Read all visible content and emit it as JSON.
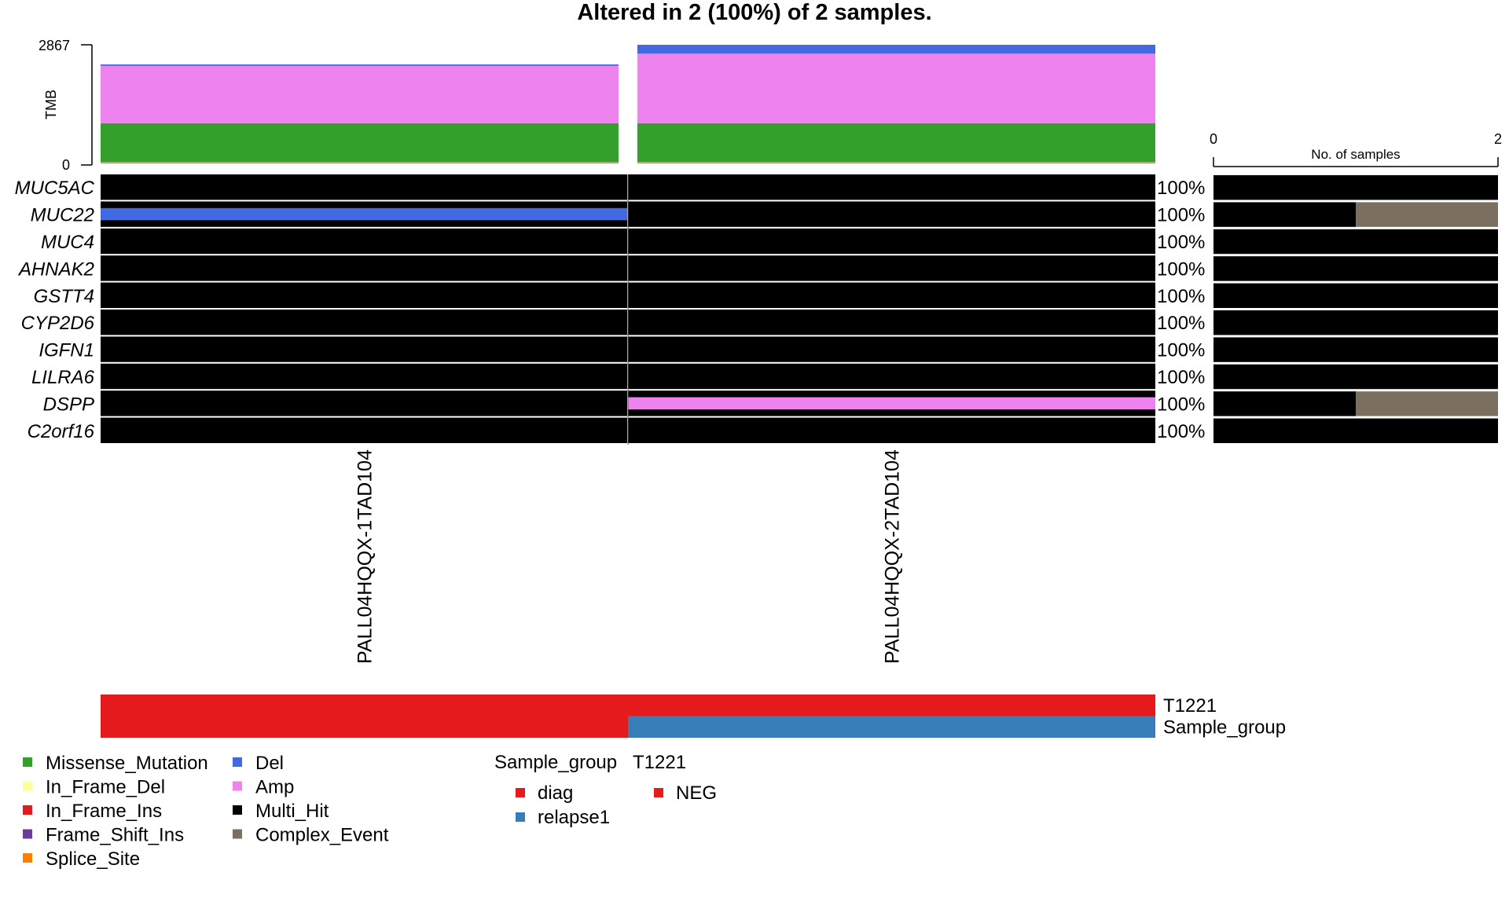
{
  "chart_data": {
    "type": "oncoplot",
    "title": "Altered in 2 (100%) of 2 samples.",
    "tmb_axis": {
      "label": "TMB",
      "ylim": [
        0,
        2867
      ],
      "ticks": [
        "0",
        "2867"
      ]
    },
    "samples": [
      "PALL04HQQX-1TAD104",
      "PALL04HQQX-2TAD104"
    ],
    "tmb": [
      {
        "sample": "PALL04HQQX-1TAD104",
        "segments": [
          {
            "class": "Splice_Site",
            "value": 8
          },
          {
            "class": "Frame_Shift_Ins",
            "value": 8
          },
          {
            "class": "In_Frame_Ins",
            "value": 8
          },
          {
            "class": "In_Frame_Del",
            "value": 8
          },
          {
            "class": "Missense_Mutation",
            "value": 940
          },
          {
            "class": "Amp",
            "value": 1385
          },
          {
            "class": "Del",
            "value": 35
          }
        ]
      },
      {
        "sample": "PALL04HQQX-2TAD104",
        "segments": [
          {
            "class": "Splice_Site",
            "value": 8
          },
          {
            "class": "Frame_Shift_Ins",
            "value": 8
          },
          {
            "class": "In_Frame_Ins",
            "value": 8
          },
          {
            "class": "In_Frame_Del",
            "value": 8
          },
          {
            "class": "Missense_Mutation",
            "value": 940
          },
          {
            "class": "Amp",
            "value": 1680
          },
          {
            "class": "Del",
            "value": 215
          }
        ]
      }
    ],
    "genes": [
      "MUC5AC",
      "MUC22",
      "MUC4",
      "AHNAK2",
      "GSTT4",
      "CYP2D6",
      "IGFN1",
      "LILRA6",
      "DSPP",
      "C2orf16"
    ],
    "percentages": [
      "100%",
      "100%",
      "100%",
      "100%",
      "100%",
      "100%",
      "100%",
      "100%",
      "100%",
      "100%"
    ],
    "cells": [
      [
        "Multi_Hit",
        "Multi_Hit"
      ],
      [
        "Del",
        "Multi_Hit"
      ],
      [
        "Multi_Hit",
        "Multi_Hit"
      ],
      [
        "Multi_Hit",
        "Multi_Hit"
      ],
      [
        "Multi_Hit",
        "Multi_Hit"
      ],
      [
        "Multi_Hit",
        "Multi_Hit"
      ],
      [
        "Multi_Hit",
        "Multi_Hit"
      ],
      [
        "Multi_Hit",
        "Multi_Hit"
      ],
      [
        "Multi_Hit",
        "Amp"
      ],
      [
        "Multi_Hit",
        "Multi_Hit"
      ]
    ],
    "side_bar": {
      "label": "No. of samples",
      "xlim": [
        0,
        2
      ],
      "ticks": [
        "0",
        "2"
      ],
      "rows": [
        [
          {
            "class": "Multi_Hit",
            "value": 2
          }
        ],
        [
          {
            "class": "Multi_Hit",
            "value": 1
          },
          {
            "class": "Complex_Event",
            "value": 1
          }
        ],
        [
          {
            "class": "Multi_Hit",
            "value": 2
          }
        ],
        [
          {
            "class": "Multi_Hit",
            "value": 2
          }
        ],
        [
          {
            "class": "Multi_Hit",
            "value": 2
          }
        ],
        [
          {
            "class": "Multi_Hit",
            "value": 2
          }
        ],
        [
          {
            "class": "Multi_Hit",
            "value": 2
          }
        ],
        [
          {
            "class": "Multi_Hit",
            "value": 2
          }
        ],
        [
          {
            "class": "Multi_Hit",
            "value": 1
          },
          {
            "class": "Complex_Event",
            "value": 1
          }
        ],
        [
          {
            "class": "Multi_Hit",
            "value": 2
          }
        ]
      ]
    },
    "annotations": [
      {
        "name": "T1221",
        "values": [
          "NEG",
          "NEG"
        ]
      },
      {
        "name": "Sample_group",
        "values": [
          "diag",
          "relapse1"
        ]
      }
    ],
    "variant_legend": {
      "col1": [
        "Missense_Mutation",
        "In_Frame_Del",
        "In_Frame_Ins",
        "Frame_Shift_Ins",
        "Splice_Site"
      ],
      "col2": [
        "Del",
        "Amp",
        "Multi_Hit",
        "Complex_Event"
      ]
    },
    "annotation_legend": [
      {
        "title": "Sample_group",
        "items": [
          "diag",
          "relapse1"
        ]
      },
      {
        "title": "T1221",
        "items": [
          "NEG"
        ]
      }
    ],
    "colors": {
      "Missense_Mutation": "#33a02c",
      "In_Frame_Del": "#ffff99",
      "In_Frame_Ins": "#e31a1c",
      "Frame_Shift_Ins": "#6a3d9a",
      "Splice_Site": "#ff7f00",
      "Del": "#4169e1",
      "Amp": "#ee82ee",
      "Multi_Hit": "#000000",
      "Complex_Event": "#7b7060",
      "diag": "#e41a1c",
      "relapse1": "#377eb8",
      "NEG": "#e41a1c"
    }
  }
}
